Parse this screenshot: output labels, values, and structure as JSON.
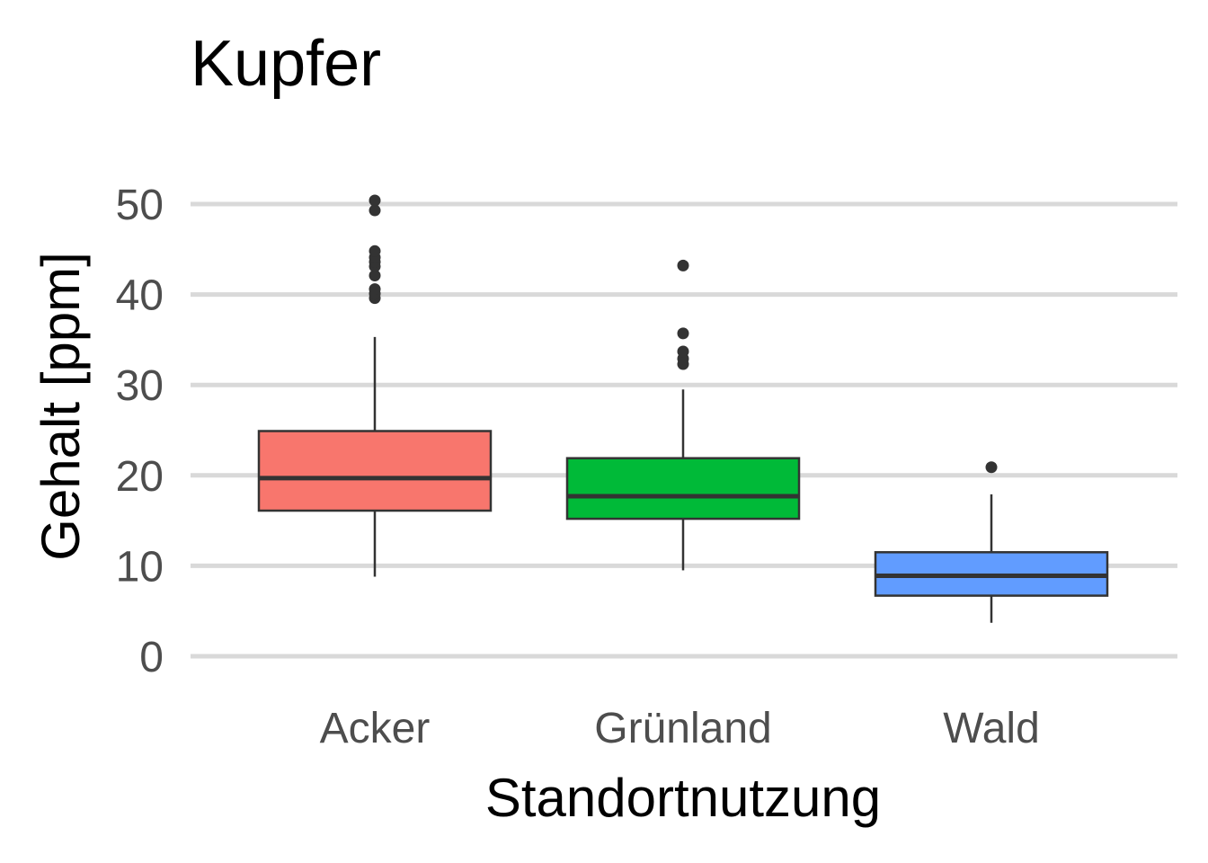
{
  "chart_data": {
    "type": "boxplot",
    "title": "Kupfer",
    "xlabel": "Standortnutzung",
    "ylabel": "Gehalt [ppm]",
    "ylim": [
      -2,
      53
    ],
    "yticks": [
      0,
      10,
      20,
      30,
      40,
      50
    ],
    "grid": "horizontal",
    "categories": [
      "Acker",
      "Grünland",
      "Wald"
    ],
    "boxes": [
      {
        "name": "Acker",
        "color": "#F8766D",
        "whisker_low": 8.8,
        "q1": 16.1,
        "median": 19.7,
        "q3": 24.9,
        "whisker_high": 35.3,
        "outliers": [
          39.6,
          40.1,
          40.6,
          42.1,
          43.1,
          43.6,
          44.1,
          44.8,
          49.3,
          50.4
        ]
      },
      {
        "name": "Grünland",
        "color": "#00BA38",
        "whisker_low": 9.5,
        "q1": 15.2,
        "median": 17.7,
        "q3": 21.9,
        "whisker_high": 29.5,
        "outliers": [
          32.3,
          32.9,
          33.7,
          35.7,
          43.2
        ]
      },
      {
        "name": "Wald",
        "color": "#619CFF",
        "whisker_low": 3.7,
        "q1": 6.7,
        "median": 8.9,
        "q3": 11.5,
        "whisker_high": 17.9,
        "outliers": [
          20.9
        ]
      }
    ]
  }
}
